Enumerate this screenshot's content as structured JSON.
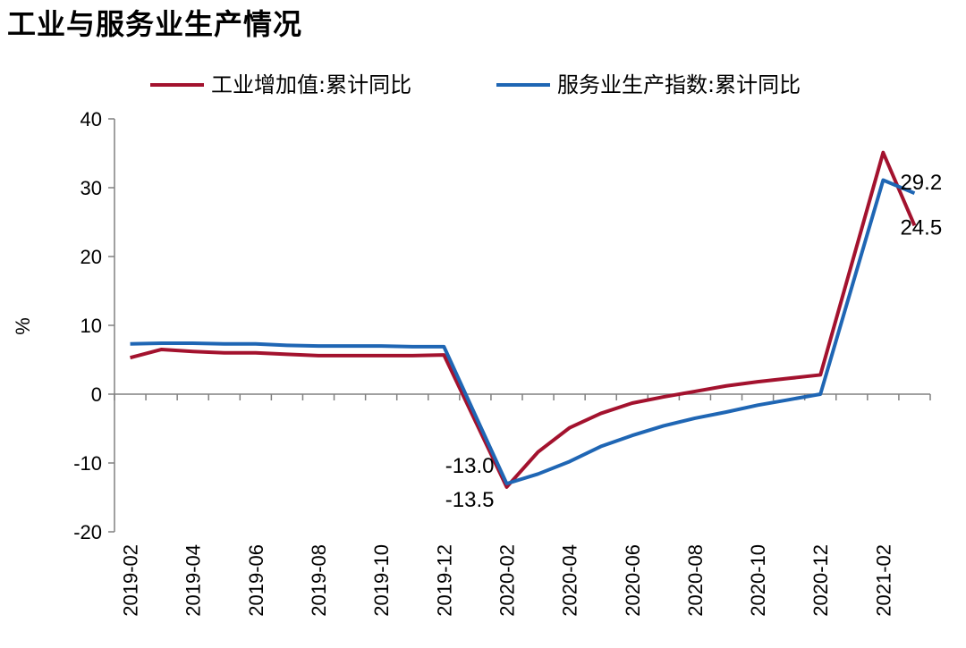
{
  "chart_data": {
    "type": "line",
    "title": "工业与服务业生产情况",
    "ylabel": "%",
    "xlabel": "",
    "ylim": [
      -20,
      40
    ],
    "yticks": [
      -20,
      -10,
      0,
      10,
      20,
      30,
      40
    ],
    "legend_position": "top",
    "grid": false,
    "x": [
      "2019-02",
      "2019-03",
      "2019-04",
      "2019-05",
      "2019-06",
      "2019-07",
      "2019-08",
      "2019-09",
      "2019-10",
      "2019-11",
      "2019-12",
      "2020-01",
      "2020-02",
      "2020-03",
      "2020-04",
      "2020-05",
      "2020-06",
      "2020-07",
      "2020-08",
      "2020-09",
      "2020-10",
      "2020-11",
      "2020-12",
      "2021-01",
      "2021-02",
      "2021-03"
    ],
    "xtick_labels": [
      "2019-02",
      "2019-04",
      "2019-06",
      "2019-08",
      "2019-10",
      "2019-12",
      "2020-02",
      "2020-04",
      "2020-06",
      "2020-08",
      "2020-10",
      "2020-12",
      "2021-02"
    ],
    "series": [
      {
        "name": "工业增加值:累计同比",
        "color": "#A3122E",
        "values": [
          5.3,
          6.5,
          6.2,
          6.0,
          6.0,
          5.8,
          5.6,
          5.6,
          5.6,
          5.6,
          5.7,
          null,
          -13.5,
          -8.4,
          -4.9,
          -2.8,
          -1.3,
          -0.4,
          0.4,
          1.2,
          1.8,
          2.3,
          2.8,
          null,
          35.1,
          24.5
        ]
      },
      {
        "name": "服务业生产指数:累计同比",
        "color": "#1F66B4",
        "values": [
          7.3,
          7.4,
          7.4,
          7.3,
          7.3,
          7.1,
          7.0,
          7.0,
          7.0,
          6.9,
          6.9,
          null,
          -13.0,
          -11.6,
          -9.8,
          -7.6,
          -6.0,
          -4.6,
          -3.5,
          -2.6,
          -1.6,
          -0.8,
          0.0,
          null,
          31.1,
          29.2
        ]
      }
    ],
    "annotations": [
      {
        "series": 1,
        "index": 12,
        "text": "-13.0"
      },
      {
        "series": 0,
        "index": 12,
        "text": "-13.5"
      },
      {
        "series": 1,
        "index": 25,
        "text": "29.2"
      },
      {
        "series": 0,
        "index": 25,
        "text": "24.5"
      }
    ]
  }
}
